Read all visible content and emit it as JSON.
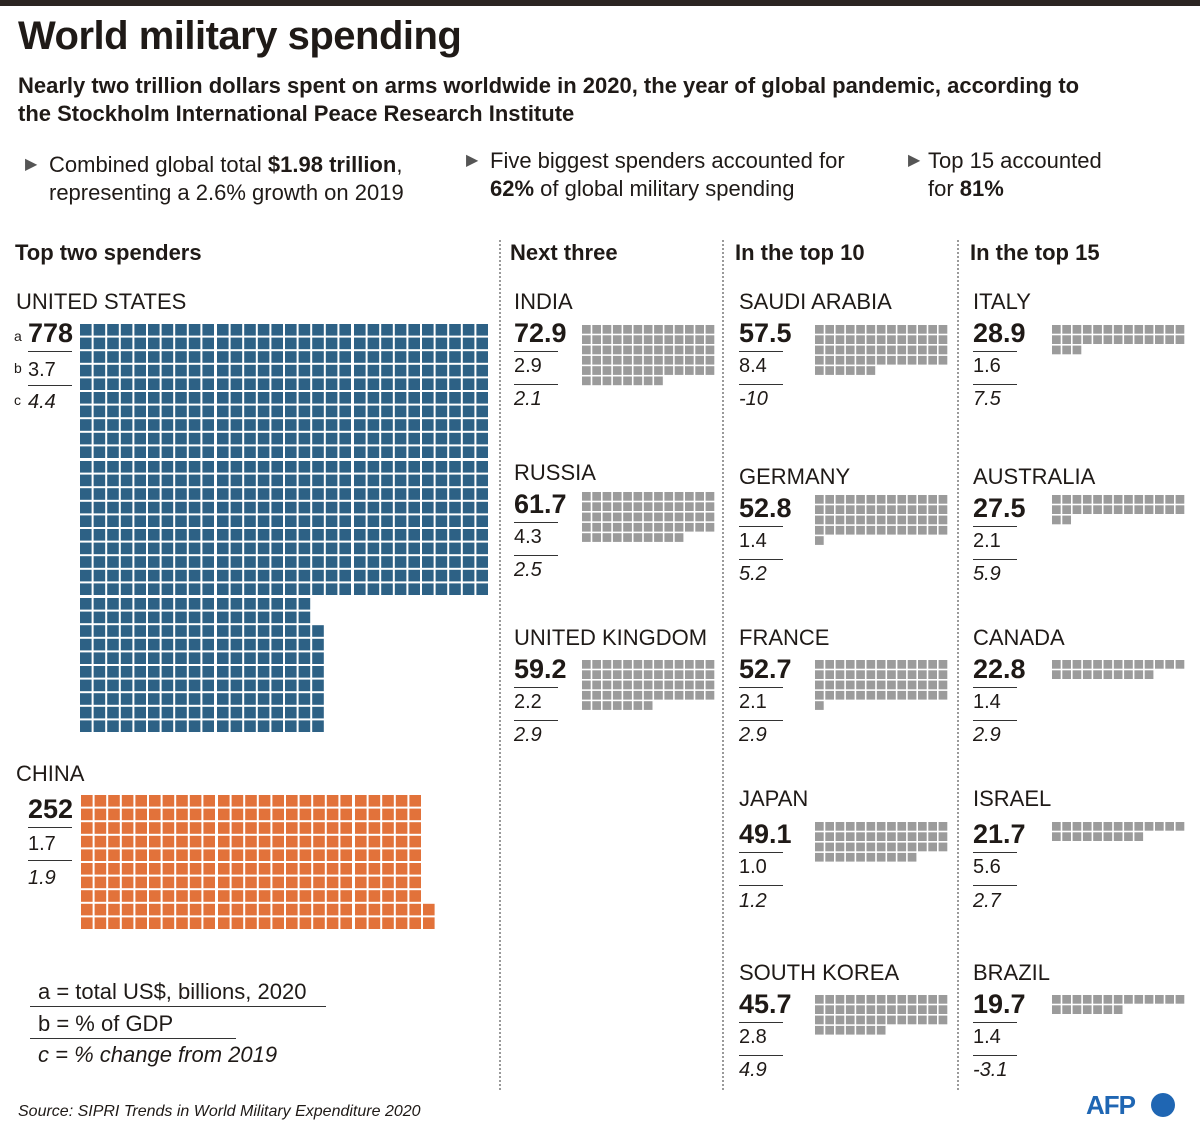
{
  "header": {
    "title": "World military spending",
    "subtitle": "Nearly two trillion dollars spent on arms worldwide in 2020, the year of global pandemic, according to the Stockholm International Peace Research Institute"
  },
  "key_facts": [
    {
      "pre": "Combined global total ",
      "bold": "$1.98 trillion",
      "post": ", representing a 2.6% growth on 2019"
    },
    {
      "pre": "Five biggest spenders accounted for ",
      "bold": "62%",
      "post": " of global military spending"
    },
    {
      "pre": "Top 15 accounted for ",
      "bold": "81%",
      "post": ""
    }
  ],
  "columns": {
    "top_two": "Top two spenders",
    "next_three": "Next three",
    "top10": "In the top 10",
    "top15": "In the top 15"
  },
  "key_letters": {
    "a": "a",
    "b": "b",
    "c": "c"
  },
  "legend": {
    "a": "a = total US$, billions, 2020",
    "b": "b = % of GDP",
    "c": "c = % change from 2019"
  },
  "source": "Source: SIPRI Trends in World Military Expenditure 2020",
  "brand": "AFP",
  "colors": {
    "us": "#2d6185",
    "china": "#e2723a",
    "others": "#9b9b9b"
  },
  "chart_data": {
    "type": "waffle",
    "unit": "US$ billions, 2020",
    "countries": [
      {
        "name": "UNITED STATES",
        "spending": "778",
        "gdp": "3.7",
        "change": "4.4",
        "value": 778
      },
      {
        "name": "CHINA",
        "spending": "252",
        "gdp": "1.7",
        "change": "1.9",
        "value": 252
      },
      {
        "name": "INDIA",
        "spending": "72.9",
        "gdp": "2.9",
        "change": "2.1",
        "value": 72.9
      },
      {
        "name": "RUSSIA",
        "spending": "61.7",
        "gdp": "4.3",
        "change": "2.5",
        "value": 61.7
      },
      {
        "name": "UNITED KINGDOM",
        "spending": "59.2",
        "gdp": "2.2",
        "change": "2.9",
        "value": 59.2
      },
      {
        "name": "SAUDI ARABIA",
        "spending": "57.5",
        "gdp": "8.4",
        "change": "-10",
        "value": 57.5
      },
      {
        "name": "GERMANY",
        "spending": "52.8",
        "gdp": "1.4",
        "change": "5.2",
        "value": 52.8
      },
      {
        "name": "FRANCE",
        "spending": "52.7",
        "gdp": "2.1",
        "change": "2.9",
        "value": 52.7
      },
      {
        "name": "JAPAN",
        "spending": "49.1",
        "gdp": "1.0",
        "change": "1.2",
        "value": 49.1
      },
      {
        "name": "SOUTH KOREA",
        "spending": "45.7",
        "gdp": "2.8",
        "change": "4.9",
        "value": 45.7
      },
      {
        "name": "ITALY",
        "spending": "28.9",
        "gdp": "1.6",
        "change": "7.5",
        "value": 28.9
      },
      {
        "name": "AUSTRALIA",
        "spending": "27.5",
        "gdp": "2.1",
        "change": "5.9",
        "value": 27.5
      },
      {
        "name": "CANADA",
        "spending": "22.8",
        "gdp": "1.4",
        "change": "2.9",
        "value": 22.8
      },
      {
        "name": "ISRAEL",
        "spending": "21.7",
        "gdp": "5.6",
        "change": "2.7",
        "value": 21.7
      },
      {
        "name": "BRAZIL",
        "spending": "19.7",
        "gdp": "1.4",
        "change": "-3.1",
        "value": 19.7
      }
    ]
  }
}
